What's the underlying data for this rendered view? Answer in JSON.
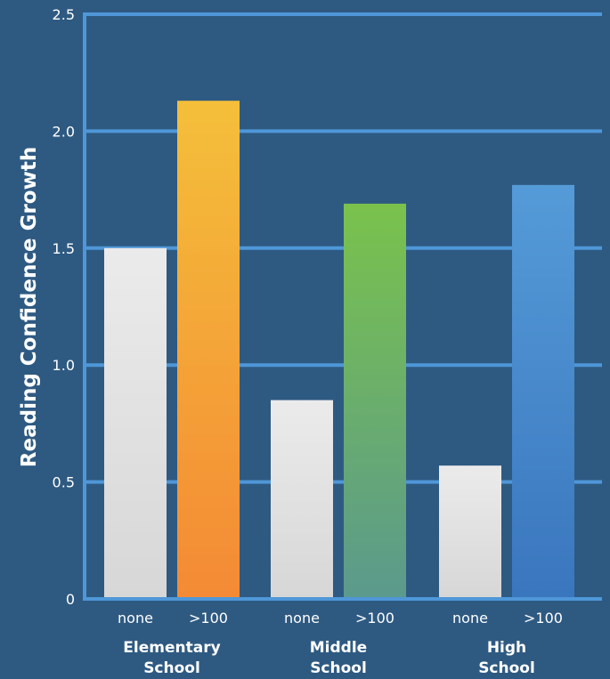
{
  "chart_data": {
    "type": "bar",
    "title": "",
    "ylabel": "Reading Confidence Growth",
    "xlabel": "",
    "ylim": [
      0,
      2.5
    ],
    "yticks": [
      {
        "value": 0,
        "label": "0"
      },
      {
        "value": 0.5,
        "label": "0.5"
      },
      {
        "value": 1.0,
        "label": "1.0"
      },
      {
        "value": 1.5,
        "label": "1.5"
      },
      {
        "value": 2.0,
        "label": "2.0"
      },
      {
        "value": 2.5,
        "label": "2.5"
      }
    ],
    "grid": true,
    "legend": "none",
    "groups": [
      {
        "name_lines": [
          "Elementary",
          "School"
        ],
        "bars": [
          {
            "category": "none",
            "value": 1.5,
            "color_top": "#ebebeb",
            "color_bottom": "#d7d7d7"
          },
          {
            "category": ">100",
            "value": 2.13,
            "color_top": "#f4bf3a",
            "color_bottom": "#f48a35"
          }
        ]
      },
      {
        "name_lines": [
          "Middle",
          "School"
        ],
        "bars": [
          {
            "category": "none",
            "value": 0.85,
            "color_top": "#ebebeb",
            "color_bottom": "#d7d7d7"
          },
          {
            "category": ">100",
            "value": 1.69,
            "color_top": "#7ac24c",
            "color_bottom": "#5b9a8c"
          }
        ]
      },
      {
        "name_lines": [
          "High",
          "School"
        ],
        "bars": [
          {
            "category": "none",
            "value": 0.57,
            "color_top": "#ebebeb",
            "color_bottom": "#d7d7d7"
          },
          {
            "category": ">100",
            "value": 1.77,
            "color_top": "#559bd8",
            "color_bottom": "#3a76be"
          }
        ]
      }
    ],
    "colors": {
      "background": "#2e5a82",
      "gridline": "#4f97d8",
      "axis": "#4f97d8",
      "text": "#ffffff"
    }
  }
}
